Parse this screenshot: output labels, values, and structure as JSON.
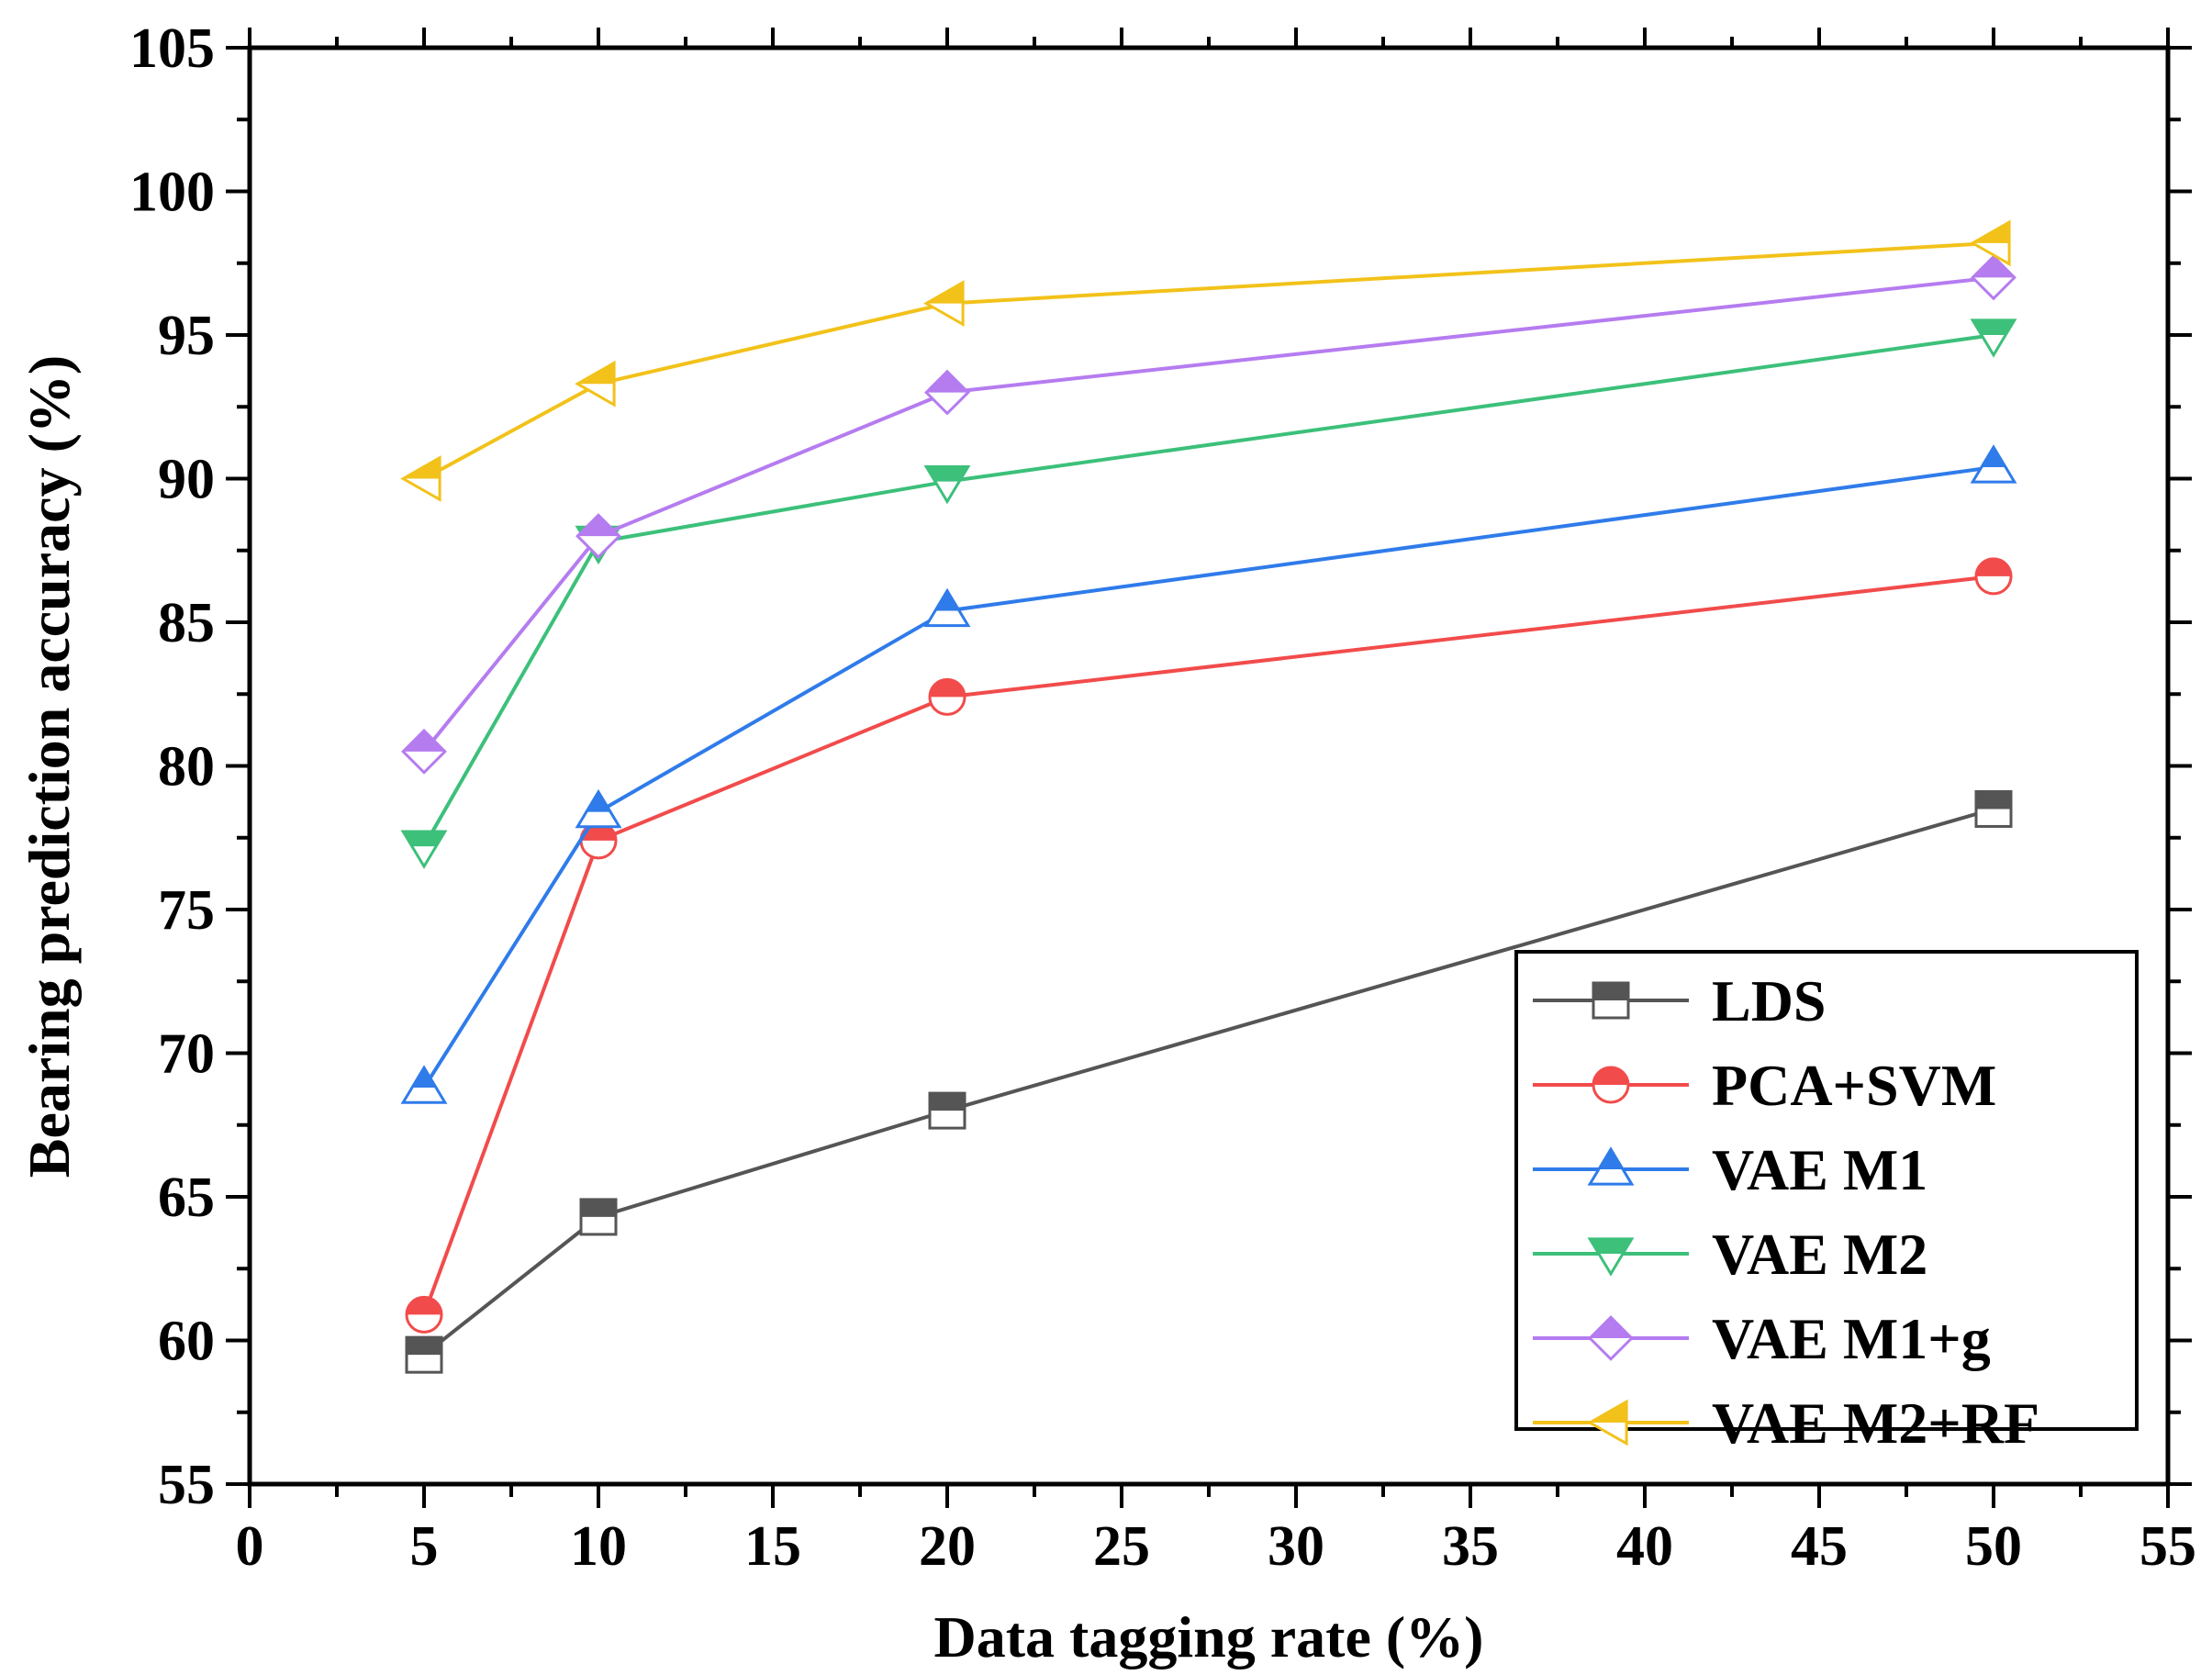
{
  "chart_data": {
    "type": "line",
    "title": "",
    "xlabel": "Data tagging rate (%)",
    "ylabel": "Bearing prediction accuracy (%)",
    "xlim": [
      0,
      55
    ],
    "ylim": [
      55,
      105
    ],
    "xticks": [
      0,
      5,
      10,
      15,
      20,
      25,
      30,
      35,
      40,
      45,
      50,
      55
    ],
    "yticks": [
      55,
      60,
      65,
      70,
      75,
      80,
      85,
      90,
      95,
      100,
      105
    ],
    "x": [
      5,
      10,
      20,
      50
    ],
    "grid": false,
    "legend_position": "bottom-right",
    "series": [
      {
        "name": "LDS",
        "values": [
          59.5,
          64.3,
          68.0,
          78.5
        ],
        "color": "#555555",
        "marker": "square"
      },
      {
        "name": "PCA+SVM",
        "values": [
          60.9,
          77.4,
          82.4,
          86.6
        ],
        "color": "#f24b4b",
        "marker": "circle"
      },
      {
        "name": "VAE M1",
        "values": [
          68.8,
          78.4,
          85.4,
          90.4
        ],
        "color": "#2f7bea",
        "marker": "triangle-up"
      },
      {
        "name": "VAE M2",
        "values": [
          77.2,
          87.8,
          89.9,
          95.0
        ],
        "color": "#3cc07a",
        "marker": "triangle-down"
      },
      {
        "name": "VAE M1+g",
        "values": [
          80.5,
          88.0,
          93.0,
          97.0
        ],
        "color": "#b57cf0",
        "marker": "diamond"
      },
      {
        "name": "VAE M2+RF",
        "values": [
          90.0,
          93.3,
          96.1,
          98.2
        ],
        "color": "#f2c21a",
        "marker": "triangle-left"
      }
    ]
  }
}
